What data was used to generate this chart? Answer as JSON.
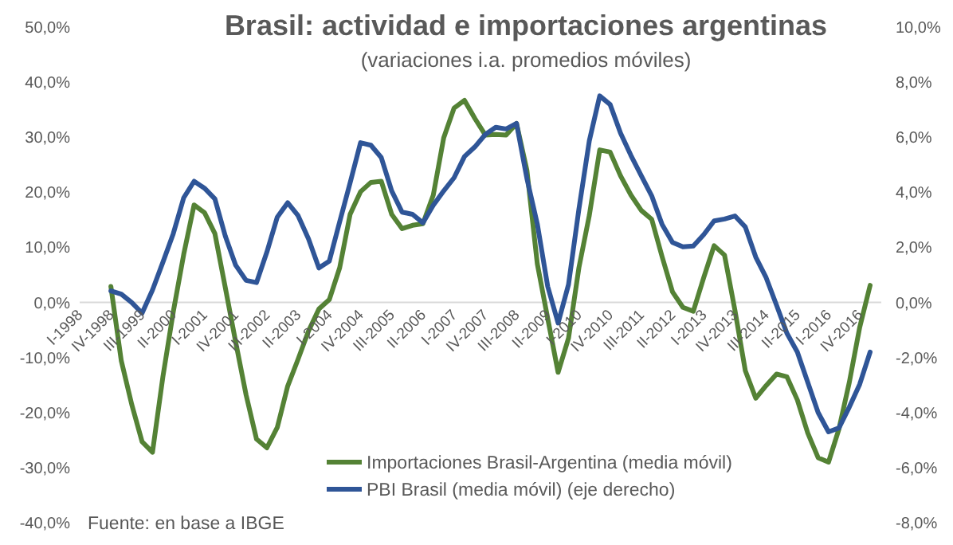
{
  "chart_data": {
    "type": "line",
    "title": "Brasil: actividad e importaciones argentinas",
    "subtitle": "(variaciones i.a. promedios móviles)",
    "categories": [
      "I-1998",
      null,
      null,
      "IV-1998",
      null,
      null,
      "III-1999",
      null,
      null,
      "II-2000",
      null,
      null,
      "I-2001",
      null,
      null,
      "IV-2001",
      null,
      null,
      "III-2002",
      null,
      null,
      "II-2003",
      null,
      null,
      "I-2004",
      null,
      null,
      "IV-2004",
      null,
      null,
      "III-2005",
      null,
      null,
      "II-2006",
      null,
      null,
      "I-2007",
      null,
      null,
      "IV-2007",
      null,
      null,
      "III-2008",
      null,
      null,
      "II-2009",
      null,
      null,
      "I-2010",
      null,
      null,
      "IV-2010",
      null,
      null,
      "III-2011",
      null,
      null,
      "II-2012",
      null,
      null,
      "I-2013",
      null,
      null,
      "IV-2013",
      null,
      null,
      "III-2014",
      null,
      null,
      "II-2015",
      null,
      null,
      "I-2016",
      null,
      null,
      "IV-2016",
      null
    ],
    "series": [
      {
        "name": "Importaciones Brasil-Argentina (media móvil)",
        "color": "#548235",
        "values": [
          null,
          null,
          null,
          2.9,
          -10.6,
          -18.5,
          -25.3,
          -27.2,
          -13.5,
          -1.7,
          8.7,
          17.7,
          16.3,
          12.5,
          2.7,
          -7.2,
          -16.8,
          -24.8,
          -26.4,
          -22.7,
          -15.2,
          -10.3,
          -5.2,
          -1.2,
          0.5,
          6.3,
          16,
          20.1,
          21.8,
          22,
          16,
          13.4,
          14,
          14.3,
          19.5,
          29.9,
          35.3,
          36.7,
          33.4,
          30.4,
          30.5,
          30.4,
          32.5,
          24,
          7,
          -2.9,
          -12.7,
          -6.5,
          6.3,
          15.8,
          27.7,
          27.3,
          23,
          19.5,
          16.7,
          15.1,
          8.3,
          1.9,
          -0.9,
          -1.6,
          4.5,
          10.3,
          8.6,
          -1.4,
          -12.4,
          -17.4,
          -15.1,
          -13,
          -13.5,
          -17.7,
          -23.7,
          -28.2,
          -29,
          -23,
          -14.5,
          -4.5,
          3.1
        ]
      },
      {
        "name": "PBI Brasil (media móvil) (eje derecho)",
        "color": "#2f5597",
        "axis": "y2",
        "values": [
          null,
          null,
          null,
          0.42,
          0.3,
          0,
          -0.39,
          0.45,
          1.46,
          2.5,
          3.8,
          4.4,
          4.15,
          3.76,
          2.41,
          1.35,
          0.8,
          0.72,
          1.83,
          3.1,
          3.62,
          3.15,
          2.31,
          1.25,
          1.5,
          2.93,
          4.34,
          5.8,
          5.71,
          5.26,
          4.05,
          3.28,
          3.2,
          2.89,
          3.53,
          4.05,
          4.53,
          5.3,
          5.65,
          6.1,
          6.36,
          6.3,
          6.5,
          4.5,
          2.85,
          0.58,
          -0.75,
          0.65,
          3.39,
          5.87,
          7.5,
          7.19,
          6.15,
          5.34,
          4.6,
          3.87,
          2.83,
          2.18,
          2.02,
          2.05,
          2.46,
          2.96,
          3.03,
          3.14,
          2.74,
          1.65,
          0.9,
          -0.1,
          -1.12,
          -1.8,
          -2.9,
          -4,
          -4.7,
          -4.56,
          -3.8,
          -2.97,
          -1.8
        ]
      }
    ],
    "ylim": [
      -40,
      50
    ],
    "yticks": [
      {
        "value": -40,
        "label": "-40,0%"
      },
      {
        "value": -30,
        "label": "-30,0%"
      },
      {
        "value": -20,
        "label": "-20,0%"
      },
      {
        "value": -10,
        "label": "-10,0%"
      },
      {
        "value": 0,
        "label": "0,0%"
      },
      {
        "value": 10,
        "label": "10,0%"
      },
      {
        "value": 20,
        "label": "20,0%"
      },
      {
        "value": 30,
        "label": "30,0%"
      },
      {
        "value": 40,
        "label": "40,0%"
      },
      {
        "value": 50,
        "label": "50,0%"
      }
    ],
    "y2lim": [
      -8,
      10
    ],
    "y2ticks": [
      {
        "value": -8,
        "label": "-8,0%"
      },
      {
        "value": -6,
        "label": "-6,0%"
      },
      {
        "value": -4,
        "label": "-4,0%"
      },
      {
        "value": -2,
        "label": "-2,0%"
      },
      {
        "value": 0,
        "label": "0,0%"
      },
      {
        "value": 2,
        "label": "2,0%"
      },
      {
        "value": 4,
        "label": "4,0%"
      },
      {
        "value": 6,
        "label": "6,0%"
      },
      {
        "value": 8,
        "label": "8,0%"
      },
      {
        "value": 10,
        "label": "10,0%"
      }
    ],
    "grid": false,
    "legend": "bottom",
    "marker": "none",
    "line_style": "solid",
    "annotations": [
      "Fuente: en base a IBGE"
    ]
  }
}
